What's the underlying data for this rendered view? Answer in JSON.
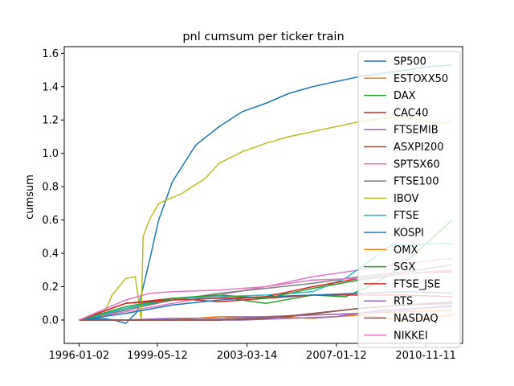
{
  "chart_data": {
    "type": "line",
    "title": "pnl cumsum per ticker train",
    "xlabel": "",
    "ylabel": "cumsum",
    "x_type": "date",
    "xlim": [
      "1995-05-15",
      "2012-06-10"
    ],
    "ylim": [
      -0.14,
      1.64
    ],
    "x_ticks": [
      "1996-01-02",
      "1999-05-12",
      "2003-03-14",
      "2007-01-12",
      "2010-11-11"
    ],
    "y_ticks": [
      0.0,
      0.2,
      0.4,
      0.6,
      0.8,
      1.0,
      1.2,
      1.4,
      1.6
    ],
    "y_tick_labels": [
      "0.0",
      "0.2",
      "0.4",
      "0.6",
      "0.8",
      "1.0",
      "1.2",
      "1.4",
      "1.6"
    ],
    "grid": false,
    "legend_position": "right",
    "series": [
      {
        "name": "SP500",
        "color": "#1f77b4",
        "x": [
          "1996-01-02",
          "1997-01-02",
          "1997-07-01",
          "1998-01-02",
          "1998-07-01",
          "1999-01-04",
          "1999-06-01",
          "2000-01-03",
          "2001-01-02",
          "2002-01-02",
          "2003-01-02",
          "2004-01-02",
          "2005-01-03",
          "2006-01-03",
          "2007-01-03",
          "2008-01-02",
          "2009-01-02",
          "2010-01-04",
          "2011-01-03",
          "2011-12-30"
        ],
        "y": [
          0.0,
          0.01,
          0.0,
          -0.02,
          0.05,
          0.35,
          0.6,
          0.83,
          1.05,
          1.16,
          1.25,
          1.3,
          1.36,
          1.4,
          1.43,
          1.46,
          1.48,
          1.5,
          1.52,
          1.53
        ]
      },
      {
        "name": "ESTOXX50",
        "color": "#ff7f0e",
        "x": [
          "1996-01-02",
          "1998-01-02",
          "2000-01-03",
          "2002-01-02",
          "2004-01-02",
          "2006-01-03",
          "2008-01-02",
          "2010-01-04",
          "2011-12-30"
        ],
        "y": [
          0.0,
          0.0,
          0.0,
          0.02,
          0.02,
          0.01,
          0.03,
          0.0,
          0.03
        ]
      },
      {
        "name": "DAX",
        "color": "#2ca02c",
        "x": [
          "1996-01-02",
          "1998-01-02",
          "2000-01-03",
          "2002-01-02",
          "2004-01-02",
          "2006-01-03",
          "2007-06-01",
          "2008-06-02",
          "2009-06-01",
          "2010-06-01",
          "2011-12-30"
        ],
        "y": [
          0.0,
          0.06,
          0.13,
          0.14,
          0.1,
          0.15,
          0.14,
          0.2,
          0.28,
          0.4,
          0.6
        ]
      },
      {
        "name": "CAC40",
        "color": "#d62728",
        "x": [
          "1996-01-02",
          "1998-01-02",
          "2000-01-03",
          "2002-01-02",
          "2004-01-02",
          "2006-01-03",
          "2008-01-02",
          "2010-01-04",
          "2011-12-30"
        ],
        "y": [
          0.0,
          0.1,
          0.13,
          0.11,
          0.13,
          0.15,
          0.15,
          0.15,
          0.14
        ]
      },
      {
        "name": "FTSEMIB",
        "color": "#9467bd",
        "x": [
          "1996-01-02",
          "1999-01-04",
          "2003-01-02",
          "2007-01-03",
          "2009-01-02",
          "2011-12-30"
        ],
        "y": [
          0.0,
          0.0,
          0.0,
          0.02,
          0.06,
          0.08
        ]
      },
      {
        "name": "ASXPI200",
        "color": "#8c564b",
        "x": [
          "1996-01-02",
          "1999-01-04",
          "2002-01-02",
          "2005-01-03",
          "2008-01-02",
          "2010-01-04",
          "2011-12-30"
        ],
        "y": [
          0.0,
          0.0,
          0.0,
          0.02,
          0.07,
          0.09,
          0.11
        ]
      },
      {
        "name": "SPTSX60",
        "color": "#e377c2",
        "x": [
          "1996-01-02",
          "1998-01-02",
          "2000-01-03",
          "2002-01-02",
          "2004-01-02",
          "2006-01-03",
          "2008-01-02",
          "2010-01-04",
          "2011-12-30"
        ],
        "y": [
          0.0,
          0.05,
          0.1,
          0.15,
          0.2,
          0.26,
          0.3,
          0.34,
          0.37
        ]
      },
      {
        "name": "FTSE100",
        "color": "#7f7f7f",
        "x": [
          "1996-01-02",
          "1998-01-02",
          "2000-01-03",
          "2002-01-02",
          "2004-01-02",
          "2006-01-03",
          "2008-01-02",
          "2010-01-04",
          "2011-12-30"
        ],
        "y": [
          0.0,
          0.06,
          0.12,
          0.16,
          0.19,
          0.22,
          0.26,
          0.29,
          0.33
        ]
      },
      {
        "name": "IBOV",
        "color": "#bcbd22",
        "x": [
          "1996-01-02",
          "1997-01-02",
          "1997-06-02",
          "1998-01-02",
          "1998-06-01",
          "1998-09-01",
          "1998-10-01",
          "1999-01-04",
          "1999-06-01",
          "2000-06-01",
          "2001-06-01",
          "2002-01-02",
          "2003-01-02",
          "2004-01-02",
          "2005-01-03",
          "2006-01-03",
          "2007-01-03",
          "2008-01-02",
          "2009-01-02",
          "2010-01-04",
          "2011-06-01",
          "2011-12-30"
        ],
        "y": [
          0.0,
          0.02,
          0.15,
          0.25,
          0.26,
          0.0,
          0.5,
          0.6,
          0.7,
          0.76,
          0.85,
          0.94,
          1.01,
          1.06,
          1.1,
          1.13,
          1.16,
          1.19,
          1.21,
          1.22,
          1.18,
          1.19
        ]
      },
      {
        "name": "FTSE",
        "color": "#17becf",
        "x": [
          "1996-01-02",
          "1998-01-02",
          "2000-01-03",
          "2002-01-02",
          "2004-01-02",
          "2006-01-03",
          "2007-06-01",
          "2008-06-02",
          "2009-06-01",
          "2011-12-30"
        ],
        "y": [
          0.0,
          0.07,
          0.13,
          0.14,
          0.15,
          0.17,
          0.25,
          0.35,
          0.45,
          0.46
        ]
      },
      {
        "name": "KOSPI",
        "color": "#1f77b4",
        "x": [
          "1996-01-02",
          "1998-01-02",
          "2000-01-03",
          "2002-01-02",
          "2004-01-02",
          "2006-01-03",
          "2008-01-02",
          "2010-01-04",
          "2011-12-30"
        ],
        "y": [
          0.0,
          0.04,
          0.09,
          0.12,
          0.14,
          0.15,
          0.16,
          0.17,
          0.16
        ]
      },
      {
        "name": "OMX",
        "color": "#ff7f0e",
        "x": [
          "1996-01-02",
          "1998-01-02",
          "2000-01-03",
          "2002-01-02",
          "2004-01-02",
          "2006-01-03",
          "2008-01-02",
          "2010-01-04",
          "2011-12-30"
        ],
        "y": [
          0.0,
          0.0,
          0.01,
          0.01,
          0.02,
          0.03,
          0.04,
          0.05,
          0.06
        ]
      },
      {
        "name": "SGX",
        "color": "#2ca02c",
        "x": [
          "1996-01-02",
          "1998-01-02",
          "2000-01-03",
          "2002-01-02",
          "2004-01-02",
          "2006-01-03",
          "2008-01-02",
          "2010-01-04",
          "2011-12-30"
        ],
        "y": [
          0.0,
          0.08,
          0.13,
          0.15,
          0.13,
          0.19,
          0.24,
          0.28,
          0.3
        ]
      },
      {
        "name": "FTSE_JSE",
        "color": "#d62728",
        "x": [
          "1996-01-02",
          "1998-01-02",
          "2000-01-03",
          "2002-01-02",
          "2004-01-02",
          "2006-01-03",
          "2008-01-02",
          "2010-01-04",
          "2011-12-30"
        ],
        "y": [
          0.0,
          0.1,
          0.12,
          0.13,
          0.14,
          0.2,
          0.25,
          0.28,
          0.29
        ]
      },
      {
        "name": "RTS",
        "color": "#9467bd",
        "x": [
          "1996-01-02",
          "1998-01-02",
          "2000-01-03",
          "2002-01-02",
          "2004-01-02",
          "2006-01-03",
          "2008-01-02",
          "2010-01-04",
          "2011-12-30"
        ],
        "y": [
          0.0,
          0.0,
          0.01,
          0.01,
          0.02,
          0.03,
          0.04,
          0.06,
          0.09
        ]
      },
      {
        "name": "NASDAQ",
        "color": "#8c564b",
        "x": [
          "1996-01-02",
          "1999-01-04",
          "2002-01-02",
          "2004-01-02",
          "2006-01-03",
          "2008-01-02",
          "2010-01-04",
          "2011-12-30"
        ],
        "y": [
          0.0,
          0.0,
          0.0,
          0.01,
          0.04,
          0.07,
          0.09,
          0.1
        ]
      },
      {
        "name": "NIKKEI",
        "color": "#e377c2",
        "x": [
          "1996-01-02",
          "1997-01-02",
          "1998-01-02",
          "1999-01-04",
          "2000-01-03",
          "2002-01-02",
          "2004-01-02",
          "2006-01-03",
          "2008-01-02",
          "2010-01-04",
          "2011-12-30"
        ],
        "y": [
          0.0,
          0.06,
          0.12,
          0.16,
          0.17,
          0.18,
          0.2,
          0.24,
          0.25,
          0.28,
          0.3
        ]
      }
    ]
  }
}
